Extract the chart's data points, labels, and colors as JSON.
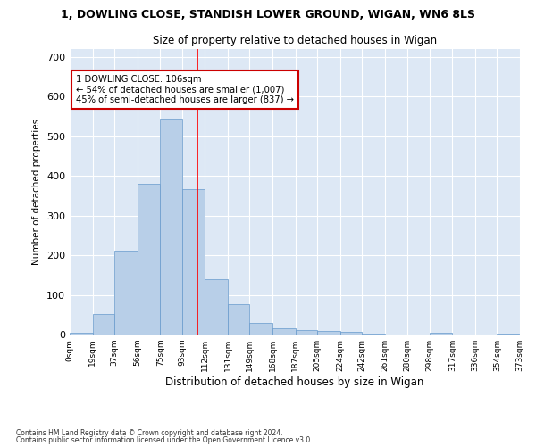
{
  "title1": "1, DOWLING CLOSE, STANDISH LOWER GROUND, WIGAN, WN6 8LS",
  "title2": "Size of property relative to detached houses in Wigan",
  "xlabel": "Distribution of detached houses by size in Wigan",
  "ylabel": "Number of detached properties",
  "bar_heights": [
    5,
    52,
    212,
    380,
    545,
    367,
    140,
    76,
    30,
    16,
    12,
    8,
    7,
    2,
    0,
    0,
    4,
    0,
    0,
    3
  ],
  "bin_left_edges": [
    0,
    19,
    37,
    56,
    75,
    93,
    112,
    131,
    149,
    168,
    187,
    205,
    224,
    242,
    261,
    280,
    298,
    317,
    336,
    354
  ],
  "bin_width": 18,
  "tick_positions": [
    0,
    19,
    37,
    56,
    75,
    93,
    112,
    131,
    149,
    168,
    187,
    205,
    224,
    242,
    261,
    280,
    298,
    317,
    336,
    354,
    373
  ],
  "tick_labels": [
    "0sqm",
    "19sqm",
    "37sqm",
    "56sqm",
    "75sqm",
    "93sqm",
    "112sqm",
    "131sqm",
    "149sqm",
    "168sqm",
    "187sqm",
    "205sqm",
    "224sqm",
    "242sqm",
    "261sqm",
    "280sqm",
    "298sqm",
    "317sqm",
    "336sqm",
    "354sqm",
    "373sqm"
  ],
  "bar_color": "#b8cfe8",
  "bar_edge_color": "#6699cc",
  "red_line_x": 106,
  "xlim": [
    0,
    373
  ],
  "ylim": [
    0,
    720
  ],
  "yticks": [
    0,
    100,
    200,
    300,
    400,
    500,
    600,
    700
  ],
  "annotation_text": "1 DOWLING CLOSE: 106sqm\n← 54% of detached houses are smaller (1,007)\n45% of semi-detached houses are larger (837) →",
  "footnote1": "Contains HM Land Registry data © Crown copyright and database right 2024.",
  "footnote2": "Contains public sector information licensed under the Open Government Licence v3.0.",
  "background_color": "#dde8f5",
  "grid_color": "#ffffff",
  "anno_box_color": "#cc0000",
  "anno_y": 655,
  "anno_x": 5
}
